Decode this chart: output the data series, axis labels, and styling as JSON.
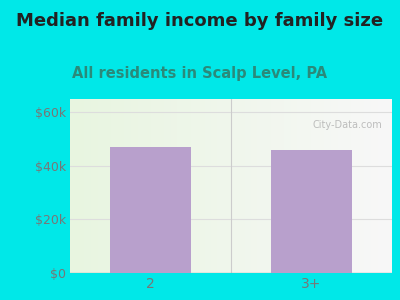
{
  "categories": [
    "2",
    "3+"
  ],
  "values": [
    47000,
    46000
  ],
  "bar_color": "#b8a0cc",
  "title": "Median family income by family size",
  "subtitle": "All residents in Scalp Level, PA",
  "title_fontsize": 13,
  "subtitle_fontsize": 10.5,
  "ylabel_ticks": [
    0,
    20000,
    40000,
    60000
  ],
  "ylabel_labels": [
    "$0",
    "$20k",
    "$40k",
    "$60k"
  ],
  "ylim": [
    0,
    65000
  ],
  "background_color": "#00e8e8",
  "plot_bg_topleft": "#e8f5e0",
  "plot_bg_right": "#f8f8f8",
  "title_color": "#222222",
  "subtitle_color": "#2a8a7a",
  "tick_color": "#777777",
  "grid_color": "#dddddd"
}
